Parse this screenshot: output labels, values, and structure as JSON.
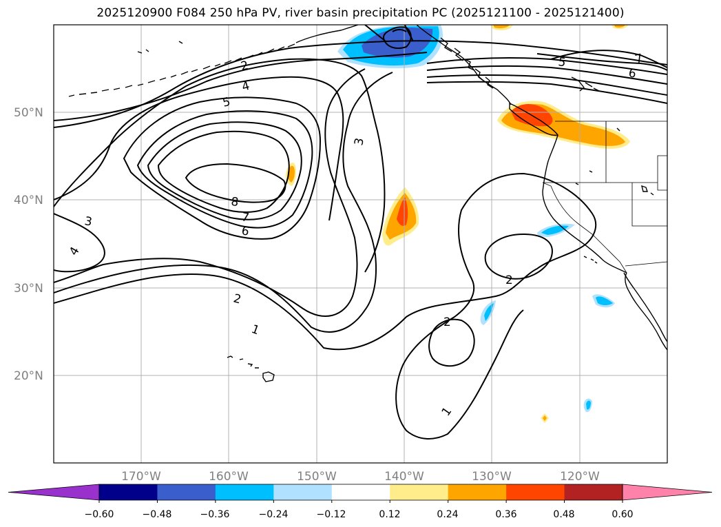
{
  "title": "2025120900 F084 250 hPa PV, river basin precipitation PC (2025121100 - 2025121400)",
  "map": {
    "lon_range": [
      -180,
      -110
    ],
    "lat_range": [
      10,
      60
    ],
    "lat_labels": [
      "20°N",
      "30°N",
      "40°N",
      "50°N"
    ],
    "lon_labels": [
      "170°W",
      "160°W",
      "150°W",
      "140°W",
      "130°W",
      "120°W"
    ]
  },
  "pv_contour_labels": [
    "1",
    "2",
    "3",
    "4",
    "5",
    "6",
    "7",
    "8",
    "3",
    "4",
    "2",
    "1",
    "2",
    "2",
    "1",
    "5",
    "6",
    "7"
  ],
  "colorbar": {
    "ticks": [
      "−0.60",
      "−0.48",
      "−0.36",
      "−0.24",
      "−0.12",
      "0.12",
      "0.24",
      "0.36",
      "0.48",
      "0.60"
    ],
    "colors": [
      "#9932cc",
      "#00008b",
      "#3a5fcd",
      "#00bfff",
      "#b0e2ff",
      "#ffffff",
      "#ffec8b",
      "#ffa500",
      "#ff4500",
      "#b22222",
      "#ff82ab"
    ],
    "extend": "both"
  }
}
